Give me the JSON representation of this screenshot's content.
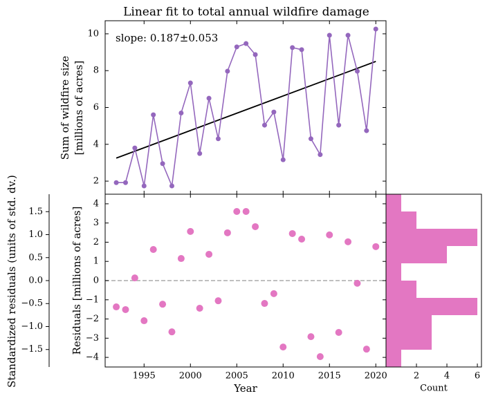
{
  "chart_data": [
    {
      "type": "line",
      "title": "Linear fit to total annual wildfire damage",
      "ylabel": [
        "Sum of wildfire size",
        "[millions of acres]"
      ],
      "annotation": "slope: 0.187±0.053",
      "x": [
        1992,
        1993,
        1994,
        1995,
        1996,
        1997,
        1998,
        1999,
        2000,
        2001,
        2002,
        2003,
        2004,
        2005,
        2006,
        2007,
        2008,
        2009,
        2010,
        2011,
        2012,
        2013,
        2014,
        2015,
        2016,
        2017,
        2018,
        2019,
        2020
      ],
      "values": [
        1.92,
        1.92,
        3.8,
        1.74,
        5.6,
        2.95,
        1.74,
        5.7,
        7.33,
        3.5,
        6.5,
        4.3,
        7.97,
        9.29,
        9.47,
        8.87,
        5.04,
        5.75,
        3.16,
        9.25,
        9.14,
        4.3,
        3.44,
        9.92,
        5.04,
        9.92,
        7.97,
        4.74,
        10.26
      ],
      "color": "#9467bd",
      "fit": {
        "x": [
          1992,
          2020
        ],
        "values": [
          3.25,
          8.5
        ],
        "color": "#000000"
      },
      "xlim": [
        1990.8,
        2021.1
      ],
      "xticks": [
        1995,
        2000,
        2005,
        2010,
        2015,
        2020
      ],
      "ylim": [
        1.29,
        10.71
      ],
      "yticks": [
        2,
        4,
        6,
        8,
        10
      ]
    },
    {
      "type": "scatter",
      "xlabel": "Year",
      "ylabel": "Residuals [millions of acres]",
      "x": [
        1992,
        1993,
        1994,
        1995,
        1996,
        1997,
        1998,
        1999,
        2000,
        2001,
        2002,
        2003,
        2004,
        2005,
        2006,
        2007,
        2008,
        2009,
        2010,
        2011,
        2012,
        2013,
        2014,
        2015,
        2016,
        2017,
        2018,
        2019,
        2020
      ],
      "values": [
        -1.37,
        -1.51,
        0.14,
        -2.09,
        1.62,
        -1.23,
        -2.67,
        1.15,
        2.56,
        -1.44,
        1.37,
        -1.05,
        2.49,
        3.6,
        3.6,
        2.81,
        -1.19,
        -0.68,
        -3.46,
        2.45,
        2.16,
        -2.92,
        -3.96,
        2.38,
        -2.7,
        2.02,
        -0.14,
        -3.57,
        1.77
      ],
      "color": "#e377c2",
      "hline": {
        "value": 0,
        "color": "#aaaaaa"
      },
      "xlim": [
        1990.8,
        2021.1
      ],
      "xticks": [
        1995,
        2000,
        2005,
        2010,
        2015,
        2020
      ],
      "ylim": [
        -4.5,
        4.5
      ],
      "yticks": [
        {
          "value": -4,
          "label": "−4"
        },
        {
          "value": -3,
          "label": "−3"
        },
        {
          "value": -2,
          "label": "−2"
        },
        {
          "value": -1,
          "label": "−1"
        },
        0,
        1,
        2,
        3,
        4
      ],
      "y2label": "Standardized residuals (units of std. dv.)",
      "y2side": "left",
      "y2lim": [
        -1.88,
        1.88
      ],
      "y2ticks": [
        {
          "value": -1.5,
          "label": "−1.5"
        },
        {
          "value": -1.0,
          "label": "−1.0"
        },
        {
          "value": -0.5,
          "label": "−0.5"
        },
        {
          "value": 0,
          "label": "0.0"
        },
        0.5,
        {
          "value": 1.0,
          "label": "1.0"
        },
        1.5
      ]
    },
    {
      "type": "histogram",
      "orientation": "horizontal",
      "xlabel": "Count",
      "bins": [
        -4.5,
        -3.6,
        -2.7,
        -1.8,
        -0.9,
        0,
        0.9,
        1.8,
        2.7,
        3.6,
        4.5
      ],
      "values": [
        1,
        3,
        3,
        6,
        2,
        1,
        4,
        6,
        2,
        1
      ],
      "color": "#e377c2",
      "xlim": [
        0,
        6.27
      ],
      "xticks": [
        2,
        4,
        6
      ],
      "ylim": [
        -4.5,
        4.5
      ]
    }
  ]
}
